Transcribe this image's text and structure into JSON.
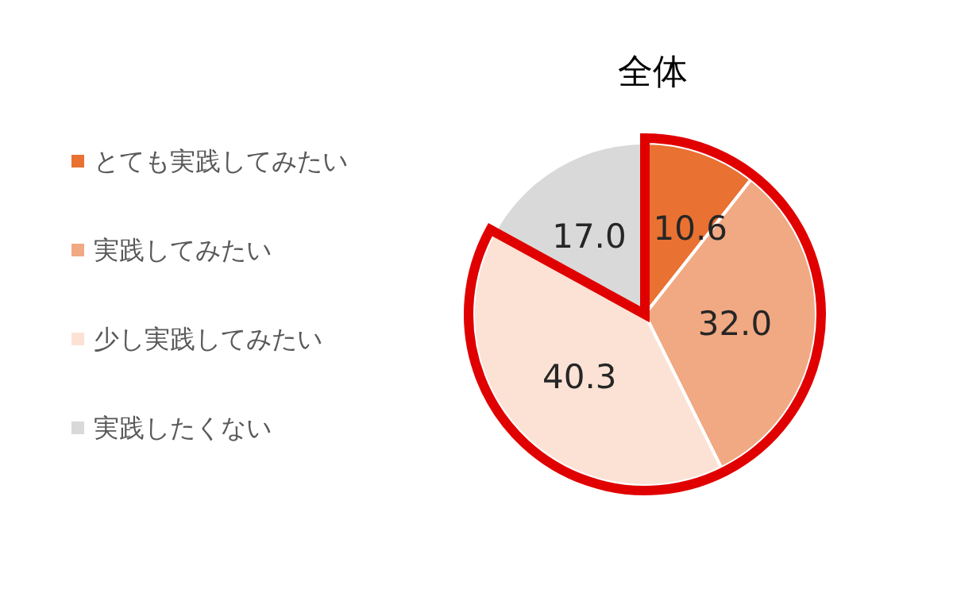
{
  "chart_data": {
    "type": "pie",
    "title": "全体",
    "categories": [
      "とても実践してみたい",
      "実践してみたい",
      "少し実践してみたい",
      "実践したくない"
    ],
    "values": [
      10.6,
      32.0,
      40.3,
      17.0
    ],
    "colors": [
      "#e97132",
      "#f1a983",
      "#fbe2d5",
      "#d9d9d9"
    ],
    "value_labels": [
      "10.6",
      "32.0",
      "40.3",
      "17.0"
    ],
    "legend": "left"
  }
}
